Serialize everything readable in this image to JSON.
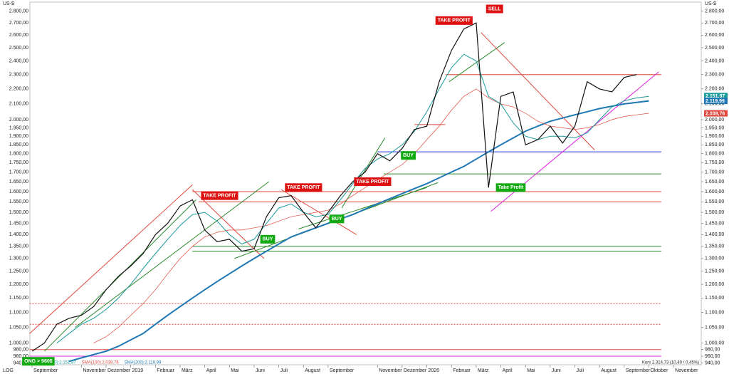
{
  "chart_data": {
    "type": "line",
    "log_scale": true,
    "currency": "US-$",
    "scale_mode": "LOG",
    "price_info": "Kurs 2.314,73 (10,40 / 0,45%)",
    "categories": [
      "September",
      null,
      null,
      null,
      "November",
      null,
      "Dezember",
      null,
      "2019",
      null,
      "Februar",
      null,
      "März",
      null,
      "April",
      null,
      "Mai",
      null,
      "Juni",
      null,
      "Juli",
      null,
      "August",
      null,
      "September",
      null,
      null,
      null,
      "November",
      null,
      "Dezember",
      null,
      "2020",
      null,
      "Februar",
      null,
      "März",
      null,
      "April",
      null,
      "Mai",
      null,
      "Juni",
      null,
      "Juli",
      null,
      "August",
      null,
      "September",
      null,
      "Oktober",
      null,
      "November",
      null
    ],
    "ylim": [
      935,
      2880
    ],
    "yticks": [
      {
        "value": 940,
        "label": "940,00"
      },
      {
        "value": 960,
        "label": "960,00"
      },
      {
        "value": 980,
        "label": "980,00"
      },
      {
        "value": 1000,
        "label": "1.000,00"
      },
      {
        "value": 1050,
        "label": "1.050,00"
      },
      {
        "value": 1100,
        "label": "1.100,00"
      },
      {
        "value": 1150,
        "label": "1.150,00"
      },
      {
        "value": 1200,
        "label": "1.200,00"
      },
      {
        "value": 1250,
        "label": "1.250,00"
      },
      {
        "value": 1300,
        "label": "1.300,00"
      },
      {
        "value": 1350,
        "label": "1.350,00"
      },
      {
        "value": 1400,
        "label": "1.400,00"
      },
      {
        "value": 1450,
        "label": "1.450,00"
      },
      {
        "value": 1500,
        "label": "1.500,00"
      },
      {
        "value": 1550,
        "label": "1.550,00"
      },
      {
        "value": 1600,
        "label": "1.600,00"
      },
      {
        "value": 1650,
        "label": "1.650,00"
      },
      {
        "value": 1700,
        "label": "1.700,00"
      },
      {
        "value": 1750,
        "label": "1.750,00"
      },
      {
        "value": 1800,
        "label": "1.800,00"
      },
      {
        "value": 1850,
        "label": "1.850,00"
      },
      {
        "value": 1900,
        "label": "1.900,00"
      },
      {
        "value": 1950,
        "label": "1.950,00"
      },
      {
        "value": 2000,
        "label": "2.000,00"
      },
      {
        "value": 2100,
        "label": "2.100,00"
      },
      {
        "value": 2200,
        "label": "2.200,00"
      },
      {
        "value": 2300,
        "label": "2.300,00"
      },
      {
        "value": 2400,
        "label": "2.400,00"
      },
      {
        "value": 2500,
        "label": "2.500,00"
      },
      {
        "value": 2600,
        "label": "2.600,00"
      },
      {
        "value": 2700,
        "label": "2.700,00"
      },
      {
        "value": 2800,
        "label": "2.800,00"
      }
    ],
    "series": [
      {
        "name": "Kurs",
        "color": "#111111",
        "width": 1.2,
        "values": [
          975,
          1000,
          1060,
          1080,
          1090,
          1120,
          1180,
          1230,
          1270,
          1320,
          1400,
          1450,
          1530,
          1560,
          1420,
          1370,
          1380,
          1330,
          1340,
          1480,
          1570,
          1580,
          1500,
          1430,
          1500,
          1580,
          1650,
          1700,
          1800,
          1760,
          1830,
          1940,
          1960,
          2250,
          2480,
          2650,
          2700,
          1620,
          2150,
          2180,
          1850,
          1880,
          1960,
          1860,
          1960,
          2250,
          2200,
          2180,
          2280,
          2300,
          null,
          null,
          null,
          null
        ]
      },
      {
        "name": "SMA(50):2.151,97",
        "color": "#1a9a9a",
        "width": 1,
        "values": [
          null,
          null,
          1000,
          1030,
          1060,
          1080,
          1110,
          1150,
          1200,
          1260,
          1320,
          1380,
          1440,
          1490,
          1500,
          1460,
          1400,
          1360,
          1380,
          1450,
          1520,
          1540,
          1500,
          1480,
          1490,
          1560,
          1640,
          1720,
          1770,
          1800,
          1850,
          1930,
          2050,
          2200,
          2350,
          2450,
          2400,
          2150,
          2100,
          1980,
          1900,
          1880,
          1900,
          1900,
          1890,
          1920,
          2000,
          2080,
          2120,
          2140,
          2150,
          null,
          null,
          null
        ]
      },
      {
        "name": "SMA(100):2.039,76",
        "color": "#e0463c",
        "width": 0.7,
        "values": [
          null,
          null,
          null,
          null,
          null,
          1000,
          1020,
          1050,
          1090,
          1130,
          1180,
          1240,
          1300,
          1350,
          1390,
          1410,
          1420,
          1420,
          1430,
          1440,
          1460,
          1480,
          1490,
          1500,
          1510,
          1540,
          1580,
          1620,
          1660,
          1700,
          1740,
          1800,
          1880,
          1960,
          2060,
          2150,
          2200,
          2140,
          2100,
          2080,
          2040,
          1990,
          1960,
          1950,
          1940,
          1950,
          1970,
          2000,
          2020,
          2030,
          2040,
          null,
          null,
          null
        ]
      },
      {
        "name": "SMA(200):2.119,99",
        "color": "#1f77b4",
        "width": 2,
        "values": [
          null,
          null,
          null,
          945,
          955,
          965,
          975,
          990,
          1010,
          1030,
          1060,
          1090,
          1120,
          1150,
          1180,
          1210,
          1240,
          1270,
          1300,
          1330,
          1360,
          1390,
          1410,
          1430,
          1450,
          1470,
          1490,
          1515,
          1540,
          1565,
          1590,
          1615,
          1640,
          1670,
          1700,
          1730,
          1770,
          1810,
          1850,
          1890,
          1930,
          1960,
          1990,
          2010,
          2030,
          2050,
          2070,
          2085,
          2100,
          2110,
          2120,
          null,
          null,
          null
        ]
      }
    ],
    "price_tags": [
      {
        "value": 2151.97,
        "label": "2.151,97",
        "color": "#1a9a9a"
      },
      {
        "value": 2119.99,
        "label": "2.119,99",
        "color": "#1f77b4"
      },
      {
        "value": 2039.76,
        "label": "2.039,76",
        "color": "#e0463c"
      }
    ],
    "levels": [
      {
        "value": 2300,
        "from": 33.5,
        "to": 51,
        "color": "#e0463c",
        "dashed": false
      },
      {
        "value": 1970,
        "from": 31,
        "to": 33.5,
        "color": "#e0463c",
        "dashed": false
      },
      {
        "value": 1810,
        "from": 28,
        "to": 51,
        "color": "#2233dd",
        "dashed": false
      },
      {
        "value": 1690,
        "from": 28.5,
        "to": 51,
        "color": "#2a8a2a",
        "dashed": false
      },
      {
        "value": 1600,
        "from": 13,
        "to": 51,
        "color": "#e0463c",
        "dashed": false
      },
      {
        "value": 1550,
        "from": 13.5,
        "to": 51,
        "color": "#e0463c",
        "dashed": false
      },
      {
        "value": 1350,
        "from": 13,
        "to": 51,
        "color": "#2a8a2a",
        "dashed": false
      },
      {
        "value": 1330,
        "from": 13,
        "to": 51,
        "color": "#2a8a2a",
        "dashed": false
      },
      {
        "value": 1130,
        "from": -0.2,
        "to": 51,
        "color": "#e0463c",
        "dashed": true
      },
      {
        "value": 1060,
        "from": -0.2,
        "to": 51,
        "color": "#e0463c",
        "dashed": true
      },
      {
        "value": 980,
        "from": -0.2,
        "to": 51,
        "color": "#e0463c",
        "dashed": false
      },
      {
        "value": 960,
        "from": -0.2,
        "to": 51,
        "color": "#dd22dd",
        "dashed": false
      }
    ],
    "trendlines": [
      {
        "x": [
          -0.2,
          13
        ],
        "y": [
          1030,
          1634
        ],
        "color": "#e0463c"
      },
      {
        "x": [
          1,
          13.3
        ],
        "y": [
          975,
          1560
        ],
        "color": "#2a8a2a"
      },
      {
        "x": [
          3.5,
          19.2
        ],
        "y": [
          1050,
          1650
        ],
        "color": "#2a8a2a"
      },
      {
        "x": [
          13,
          18.8
        ],
        "y": [
          1610,
          1300
        ],
        "color": "#e0463c"
      },
      {
        "x": [
          20.2,
          26.3
        ],
        "y": [
          1610,
          1400
        ],
        "color": "#e0463c"
      },
      {
        "x": [
          16.4,
          32.9
        ],
        "y": [
          1300,
          1645
        ],
        "color": "#2a8a2a"
      },
      {
        "x": [
          21.6,
          32
        ],
        "y": [
          1425,
          1620
        ],
        "color": "#2a8a2a"
      },
      {
        "x": [
          25.1,
          28.6
        ],
        "y": [
          1520,
          1890
        ],
        "color": "#2a8a2a"
      },
      {
        "x": [
          33.8,
          38.3
        ],
        "y": [
          2250,
          2540
        ],
        "color": "#2a8a2a"
      },
      {
        "x": [
          36.4,
          45.6
        ],
        "y": [
          2620,
          1820
        ],
        "color": "#e0463c"
      },
      {
        "x": [
          37.2,
          50.8
        ],
        "y": [
          1505,
          2320
        ],
        "color": "#dd22dd"
      }
    ],
    "annotations": [
      {
        "text": "TAKE PROFIT",
        "x": 32.7,
        "y": 2720,
        "color": "#dd1111"
      },
      {
        "text": "SELL",
        "x": 36.8,
        "y": 2820,
        "color": "#dd1111"
      },
      {
        "text": "TAKE PROFIT",
        "x": 13.7,
        "y": 1580,
        "color": "#dd1111"
      },
      {
        "text": "TAKE PROFIT",
        "x": 20.5,
        "y": 1620,
        "color": "#dd1111"
      },
      {
        "text": "TAKE PROFIT",
        "x": 26.1,
        "y": 1650,
        "color": "#dd1111"
      },
      {
        "text": "BUY",
        "x": 29.9,
        "y": 1790,
        "color": "#11aa11"
      },
      {
        "text": "BUY",
        "x": 24.1,
        "y": 1470,
        "color": "#11aa11"
      },
      {
        "text": "BUY",
        "x": 18.5,
        "y": 1380,
        "color": "#11aa11"
      },
      {
        "text": "Take Profit",
        "x": 37.6,
        "y": 1620,
        "color": "#11aa11"
      },
      {
        "text": "ONG > 960$",
        "x": -0.8,
        "y": 945,
        "color": "#11aa11"
      }
    ]
  }
}
